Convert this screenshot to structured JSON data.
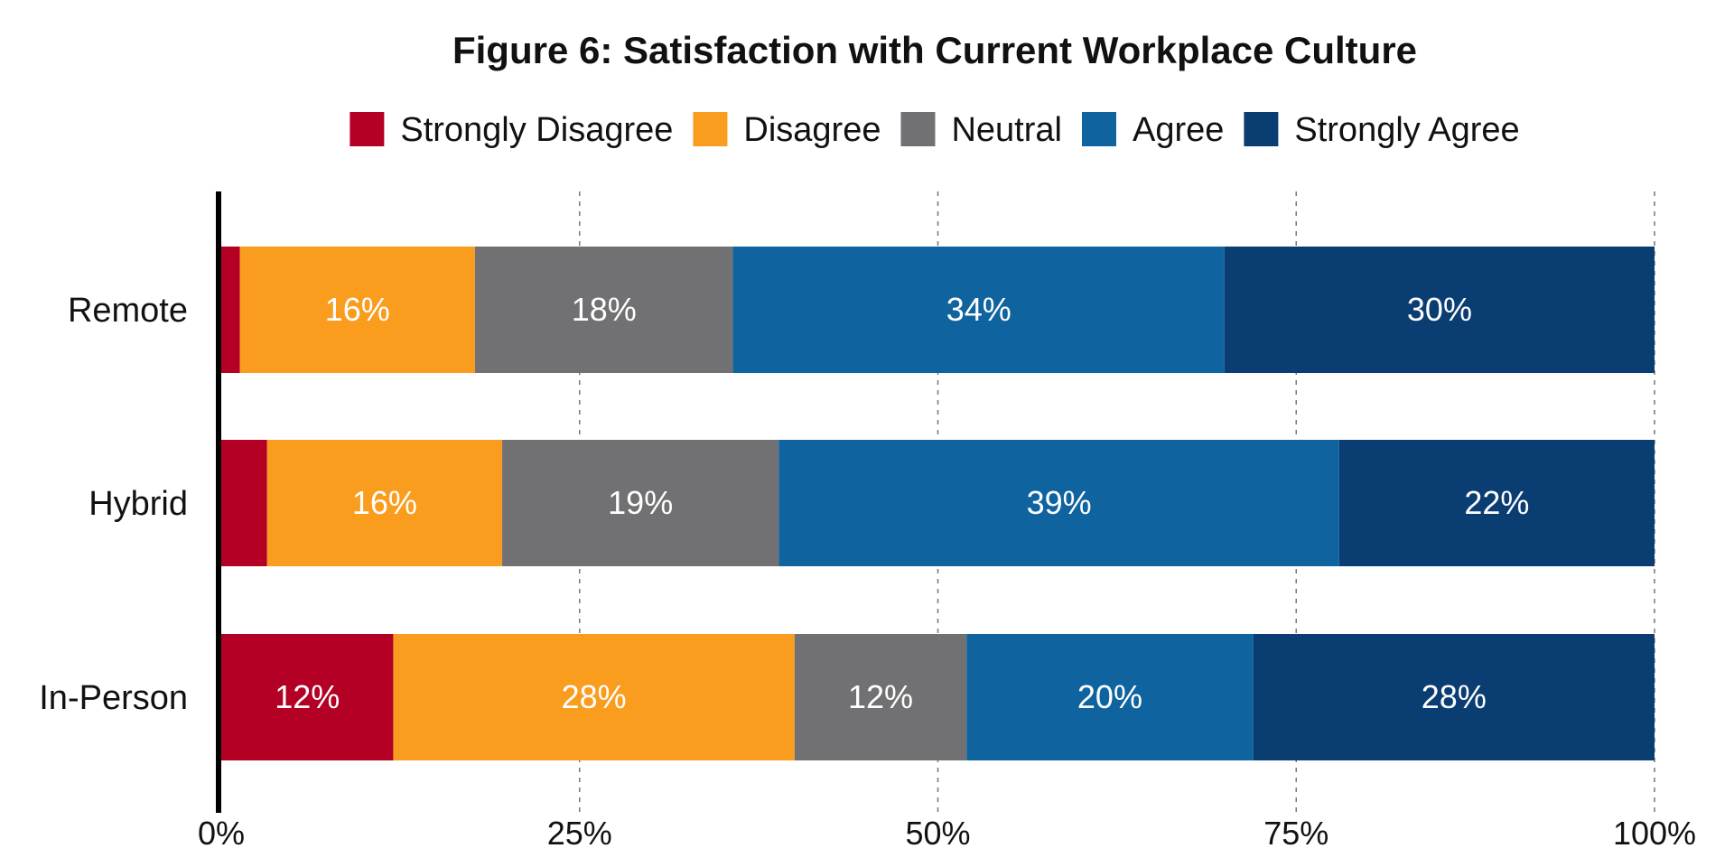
{
  "chart_data": {
    "type": "bar",
    "orientation": "horizontal",
    "stacked": true,
    "title": "Figure 6: Satisfaction with Current Workplace Culture",
    "categories": [
      "Remote",
      "Hybrid",
      "In-Person"
    ],
    "series": [
      {
        "name": "Strongly Disagree",
        "color": "#b30024",
        "values": [
          1.3,
          3.2,
          12
        ],
        "labels": [
          "",
          "",
          "12%"
        ]
      },
      {
        "name": "Disagree",
        "color": "#fa9d1e",
        "values": [
          16.4,
          16.4,
          28
        ],
        "labels": [
          "16%",
          "16%",
          "28%"
        ]
      },
      {
        "name": "Neutral",
        "color": "#717173",
        "values": [
          18,
          19.3,
          12
        ],
        "labels": [
          "18%",
          "19%",
          "12%"
        ]
      },
      {
        "name": "Agree",
        "color": "#0f64a0",
        "values": [
          34.3,
          39.1,
          20
        ],
        "labels": [
          "34%",
          "39%",
          "20%"
        ]
      },
      {
        "name": "Strongly Agree",
        "color": "#0a3d72",
        "values": [
          30,
          22,
          28
        ],
        "labels": [
          "30%",
          "22%",
          "28%"
        ]
      }
    ],
    "xlim": [
      0,
      100
    ],
    "xticks": [
      0,
      25,
      50,
      75,
      100
    ],
    "xtick_labels": [
      "0%",
      "25%",
      "50%",
      "75%",
      "100%"
    ],
    "grid": "vertical-dashed",
    "legend_position": "top"
  }
}
